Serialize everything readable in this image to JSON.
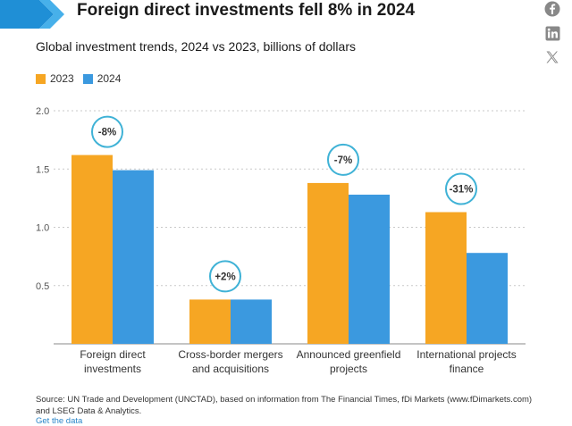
{
  "header": {
    "title": "Foreign direct investments fell 8% in 2024",
    "subtitle": "Global investment trends, 2024 vs 2023, billions of dollars"
  },
  "social": [
    {
      "name": "facebook-icon"
    },
    {
      "name": "linkedin-icon"
    },
    {
      "name": "x-icon"
    }
  ],
  "legend": [
    {
      "label": "2023",
      "color": "#F6A623"
    },
    {
      "label": "2024",
      "color": "#3B99DF"
    }
  ],
  "chart_data": {
    "type": "bar",
    "categories": [
      [
        "Foreign direct",
        "investments"
      ],
      [
        "Cross-border mergers",
        "and acquisitions"
      ],
      [
        "Announced greenfield",
        "projects"
      ],
      [
        "International projects",
        "finance"
      ]
    ],
    "series": [
      {
        "name": "2023",
        "color": "#F6A623",
        "values": [
          1.62,
          0.38,
          1.38,
          1.13
        ]
      },
      {
        "name": "2024",
        "color": "#3B99DF",
        "values": [
          1.49,
          0.38,
          1.28,
          0.78
        ]
      }
    ],
    "annotations": [
      "-8%",
      "+2%",
      "-7%",
      "-31%"
    ],
    "yticks": [
      2.0,
      1.5,
      1.0,
      0.5
    ],
    "ytick_labels": [
      "2.0",
      "1.5",
      "1.0",
      "0.5"
    ],
    "ylim": [
      0,
      2.0
    ],
    "grid": true,
    "legend_position": "top-left"
  },
  "source": {
    "text": "Source: UN Trade and Development (UNCTAD), based on information from The Financial Times, fDi Markets (www.fDimarkets.com) and LSEG Data & Analytics.",
    "link_label": "Get the data"
  }
}
